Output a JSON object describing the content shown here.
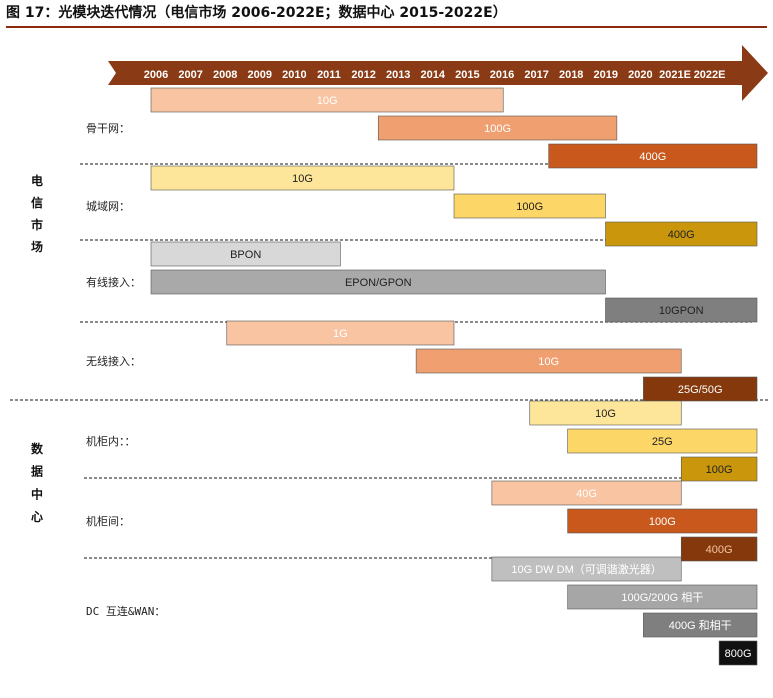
{
  "title": "图 17：光模块迭代情况（电信市场 2006-2022E；数据中心 2015-2022E）",
  "chart_data": {
    "type": "gantt",
    "years": [
      "2006",
      "2007",
      "2008",
      "2009",
      "2010",
      "2011",
      "2012",
      "2013",
      "2014",
      "2015",
      "2016",
      "2017",
      "2018",
      "2019",
      "2020",
      "2021E",
      "2022E"
    ],
    "sections": [
      {
        "name": "电信市场",
        "rows": [
          {
            "label": "骨干网：",
            "bars": [
              {
                "label": "10G",
                "start": 2006.0,
                "end": 2015.3,
                "color": "#f8c4a2",
                "text_color": "#ffffff"
              },
              {
                "label": "100G",
                "start": 2012.0,
                "end": 2018.3,
                "color": "#f0a070",
                "text_color": "#ffffff"
              },
              {
                "label": "400G",
                "start": 2016.5,
                "end": 2022.0,
                "color": "#c8581c",
                "text_color": "#ffffff"
              }
            ]
          },
          {
            "label": "城域网：",
            "bars": [
              {
                "label": "10G",
                "start": 2006.0,
                "end": 2014.0,
                "color": "#fde69a",
                "text_color": "#222222"
              },
              {
                "label": "100G",
                "start": 2014.0,
                "end": 2018.0,
                "color": "#fdd668",
                "text_color": "#222222"
              },
              {
                "label": "400G",
                "start": 2018.0,
                "end": 2022.0,
                "color": "#c9960c",
                "text_color": "#222222"
              }
            ]
          },
          {
            "label": "有线接入：",
            "bars": [
              {
                "label": "BPON",
                "start": 2006.0,
                "end": 2011.0,
                "color": "#d8d8d8",
                "text_color": "#222222"
              },
              {
                "label": "EPON/GPON",
                "start": 2006.0,
                "end": 2018.0,
                "color": "#a9a9a9",
                "text_color": "#222222"
              },
              {
                "label": "10GPON",
                "start": 2018.0,
                "end": 2022.0,
                "color": "#7f7f7f",
                "text_color": "#222222"
              }
            ]
          },
          {
            "label": "无线接入：",
            "bars": [
              {
                "label": "1G",
                "start": 2008.0,
                "end": 2014.0,
                "color": "#f8c4a2",
                "text_color": "#ffffff"
              },
              {
                "label": "10G",
                "start": 2013.0,
                "end": 2020.0,
                "color": "#f0a070",
                "text_color": "#ffffff"
              },
              {
                "label": "25G/50G",
                "start": 2019.0,
                "end": 2022.0,
                "color": "#84380c",
                "text_color": "#ffffff"
              }
            ]
          }
        ]
      },
      {
        "name": "数据中心",
        "rows": [
          {
            "label": "机柜内：：",
            "bars": [
              {
                "label": "10G",
                "start": 2016.0,
                "end": 2020.0,
                "color": "#fde69a",
                "text_color": "#222222"
              },
              {
                "label": "25G",
                "start": 2017.0,
                "end": 2022.3,
                "color": "#fdd668",
                "text_color": "#222222"
              },
              {
                "label": "100G",
                "start": 2020.0,
                "end": 2022.3,
                "color": "#c9960c",
                "text_color": "#222222"
              }
            ]
          },
          {
            "label": "机柜间：",
            "bars": [
              {
                "label": "40G",
                "start": 2015.0,
                "end": 2020.0,
                "color": "#f8c4a2",
                "text_color": "#ffffff"
              },
              {
                "label": "100G",
                "start": 2017.0,
                "end": 2022.3,
                "color": "#c8581c",
                "text_color": "#ffffff"
              },
              {
                "label": "400G",
                "start": 2020.0,
                "end": 2022.3,
                "color": "#84380c",
                "text_color": "#f8c4a2"
              }
            ]
          },
          {
            "label": "DC 互连&WAN：",
            "bars": [
              {
                "label": "10G DW DM（可调谐激光器）",
                "start": 2015.0,
                "end": 2020.0,
                "color": "#bfbfbf",
                "text_color": "#ffffff"
              },
              {
                "label": "100G/200G 相干",
                "start": 2017.0,
                "end": 2022.0,
                "color": "#a6a6a6",
                "text_color": "#ffffff"
              },
              {
                "label": "400G 和相干",
                "start": 2019.0,
                "end": 2022.0,
                "color": "#7f7f7f",
                "text_color": "#ffffff"
              },
              {
                "label": "800G",
                "start": 2021.0,
                "end": 2022.0,
                "color": "#111111",
                "text_color": "#ffffff"
              }
            ]
          }
        ]
      }
    ]
  }
}
